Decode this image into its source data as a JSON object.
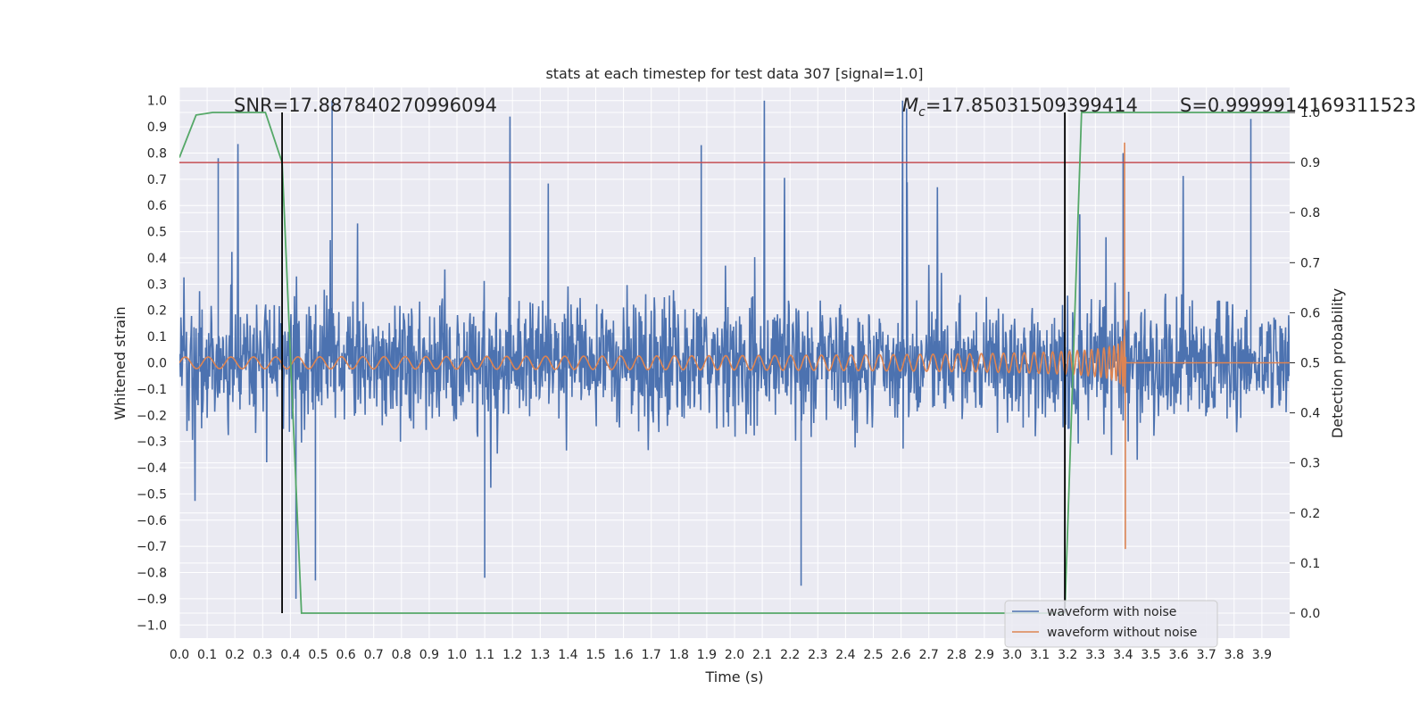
{
  "chart_data": {
    "type": "line",
    "title": "stats at each timestep for test data 307 [signal=1.0]",
    "xlabel": "Time (s)",
    "ylabel": "Whitened strain",
    "y2label": "Detection probability",
    "xlim": [
      0.0,
      4.0
    ],
    "ylim": [
      -1.05,
      1.05
    ],
    "y2lim": [
      -0.05,
      1.05
    ],
    "x_ticks": [
      "0.0",
      "0.1",
      "0.2",
      "0.3",
      "0.4",
      "0.5",
      "0.6",
      "0.7",
      "0.8",
      "0.9",
      "1.0",
      "1.1",
      "1.2",
      "1.3",
      "1.4",
      "1.5",
      "1.6",
      "1.7",
      "1.8",
      "1.9",
      "2.0",
      "2.1",
      "2.2",
      "2.3",
      "2.4",
      "2.5",
      "2.6",
      "2.7",
      "2.8",
      "2.9",
      "3.0",
      "3.1",
      "3.2",
      "3.3",
      "3.4",
      "3.5",
      "3.6",
      "3.7",
      "3.8",
      "3.9"
    ],
    "y_ticks": [
      "1.0",
      "0.9",
      "0.8",
      "0.7",
      "0.6",
      "0.5",
      "0.4",
      "0.3",
      "0.2",
      "0.1",
      "0.0",
      "−0.1",
      "−0.2",
      "−0.3",
      "−0.4",
      "−0.5",
      "−0.6",
      "−0.7",
      "−0.8",
      "−0.9",
      "−1.0"
    ],
    "y2_ticks": [
      "1.0",
      "0.9",
      "0.8",
      "0.7",
      "0.6",
      "0.5",
      "0.4",
      "0.3",
      "0.2",
      "0.1",
      "0.0"
    ],
    "grid": true,
    "legend": "bottom-right",
    "annotations": {
      "snr": "SNR=17.887840270996094",
      "mc": "=17.85031509399414",
      "mc_symbol": "M",
      "mc_sub": "c",
      "s": "S=0.9999914169311523"
    },
    "vertical_lines": [
      0.37,
      3.19
    ],
    "threshold": 0.9,
    "series": [
      {
        "name": "waveform with noise",
        "color": "#4c72b0",
        "axis": "left",
        "description": "noisy whitened strain, values roughly between -0.9 and 1.0",
        "spikes": [
          [
            0.14,
            0.78
          ],
          [
            0.55,
            1.0
          ],
          [
            0.42,
            -0.9
          ],
          [
            0.49,
            -0.83
          ],
          [
            1.88,
            0.83
          ],
          [
            2.62,
            0.97
          ],
          [
            3.86,
            0.93
          ],
          [
            2.24,
            -0.85
          ],
          [
            1.1,
            -0.82
          ],
          [
            3.4,
            0.8
          ]
        ]
      },
      {
        "name": "waveform without noise",
        "color": "#dd8452",
        "axis": "left",
        "description": "chirp signal, amplitude ~0.02 growing to ~0.84 at merger near 3.41 s",
        "merger_time": 3.41,
        "peak": 0.84,
        "trough": -0.71
      },
      {
        "name": "detection probability",
        "color": "#55a868",
        "axis": "right",
        "x": [
          0.0,
          0.06,
          0.12,
          0.31,
          0.37,
          0.44,
          3.19,
          3.25,
          4.0
        ],
        "y": [
          0.91,
          0.995,
          1.0,
          1.0,
          0.9,
          0.0,
          0.0,
          1.0,
          1.0
        ]
      }
    ],
    "colors": {
      "background": "#eaeaf2",
      "grid": "#ffffff",
      "threshold": "#c44e52",
      "vline": "#000000"
    }
  }
}
